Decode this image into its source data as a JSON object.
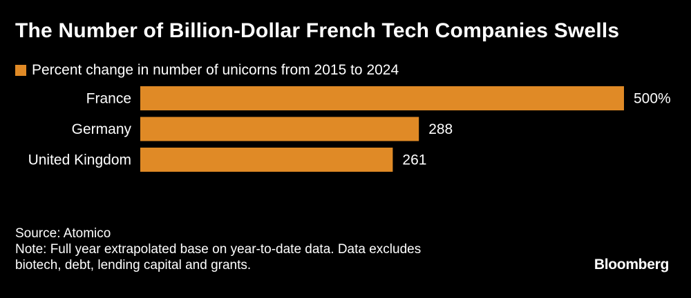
{
  "title": "The Number of Billion-Dollar French Tech Companies Swells",
  "legend": {
    "label": "Percent change in number of unicorns from 2015 to 2024",
    "color": "#e08a26"
  },
  "chart_data": {
    "type": "bar",
    "orientation": "horizontal",
    "title": "The Number of Billion-Dollar French Tech Companies Swells",
    "xlabel": "",
    "ylabel": "",
    "xlim": [
      0,
      500
    ],
    "grid": false,
    "legend_position": "top-left",
    "series": [
      {
        "name": "Percent change in number of unicorns from 2015 to 2024",
        "values": [
          500,
          288,
          261
        ]
      }
    ],
    "categories": [
      "France",
      "Germany",
      "United Kingdom"
    ],
    "values": [
      500,
      288,
      261
    ],
    "value_labels": [
      "500%",
      "288",
      "261"
    ]
  },
  "footer": {
    "source": "Source: Atomico",
    "note_line1": "Note: Full year extrapolated base on year-to-date data. Data excludes",
    "note_line2": "biotech, debt, lending capital and grants."
  },
  "brand": "Bloomberg",
  "colors": {
    "background": "#000000",
    "bar": "#e08a26",
    "text": "#ffffff"
  }
}
